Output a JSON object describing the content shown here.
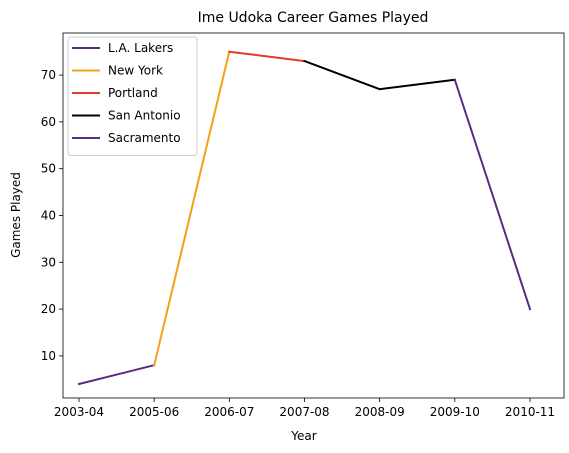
{
  "chart_data": {
    "type": "line",
    "title": "Ime Udoka Career Games Played",
    "xlabel": "Year",
    "ylabel": "Games Played",
    "categories": [
      "2003-04",
      "2005-06",
      "2006-07",
      "2007-08",
      "2008-09",
      "2009-10",
      "2010-11"
    ],
    "ylim": [
      1,
      79
    ],
    "yticks": [
      10,
      20,
      30,
      40,
      50,
      60,
      70
    ],
    "grid": false,
    "legend_position": "top-left",
    "series": [
      {
        "name": "L.A. Lakers",
        "color": "#5b2a86",
        "points": [
          [
            "2003-04",
            4
          ],
          [
            "2005-06",
            8
          ]
        ]
      },
      {
        "name": "New York",
        "color": "#f5a01a",
        "points": [
          [
            "2005-06",
            8
          ],
          [
            "2006-07",
            75
          ]
        ]
      },
      {
        "name": "Portland",
        "color": "#e03c31",
        "points": [
          [
            "2006-07",
            75
          ],
          [
            "2007-08",
            73
          ]
        ]
      },
      {
        "name": "San Antonio",
        "color": "#000000",
        "points": [
          [
            "2007-08",
            73
          ],
          [
            "2008-09",
            67
          ],
          [
            "2009-10",
            69
          ]
        ]
      },
      {
        "name": "Sacramento",
        "color": "#5b2a86",
        "points": [
          [
            "2009-10",
            69
          ],
          [
            "2010-11",
            20
          ]
        ]
      }
    ]
  }
}
